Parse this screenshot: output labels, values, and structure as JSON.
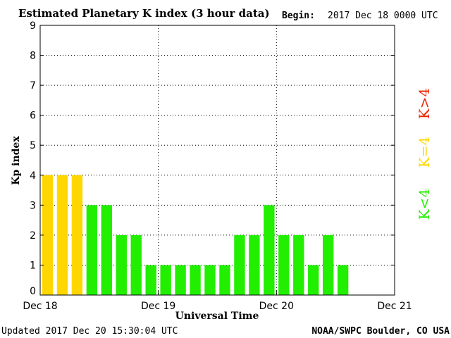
{
  "header": {
    "title": "Estimated Planetary K index (3 hour data)",
    "begin_label": "Begin:",
    "begin_value": "2017 Dec 18 0000 UTC"
  },
  "footer": {
    "updated": "Updated 2017 Dec 20 15:30:04 UTC",
    "source": "NOAA/SWPC Boulder, CO USA"
  },
  "legend": {
    "low": "K<4",
    "equal": "K=4",
    "high": "K>4"
  },
  "colors": {
    "low": "#22ee00",
    "equal": "#ffd700",
    "high": "#ee2200",
    "grid": "#000000"
  },
  "chart_data": {
    "type": "bar",
    "title": "Estimated Planetary K index (3 hour data)",
    "xlabel": "Universal Time",
    "ylabel": "Kp index",
    "ylim": [
      0,
      9
    ],
    "yticks": [
      0,
      1,
      2,
      3,
      4,
      5,
      6,
      7,
      8,
      9
    ],
    "xticks": [
      "Dec 18",
      "Dec 19",
      "Dec 20",
      "Dec 21"
    ],
    "grid": true,
    "slots_per_day": 8,
    "values": [
      4,
      4,
      4,
      3,
      3,
      2,
      2,
      1,
      1,
      1,
      1,
      1,
      1,
      2,
      2,
      3,
      2,
      2,
      1,
      2,
      1
    ]
  }
}
